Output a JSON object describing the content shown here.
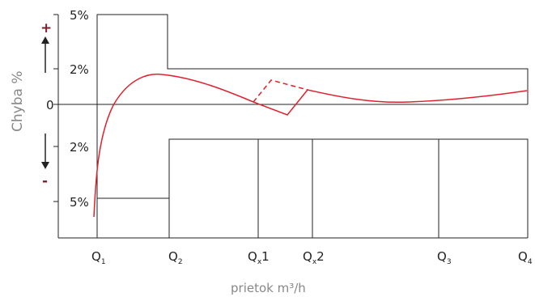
{
  "y_axis": {
    "title": "Chyba %",
    "ticks": [
      "5%",
      "2%",
      "0",
      "2%",
      "5%"
    ],
    "plus_sign": "+",
    "minus_sign": "-"
  },
  "x_axis": {
    "label": "prietok m³/h",
    "points": [
      {
        "main": "Q",
        "sub": "1",
        "suffix": ""
      },
      {
        "main": "Q",
        "sub": "2",
        "suffix": ""
      },
      {
        "main": "Q",
        "sub": "x",
        "suffix": "1"
      },
      {
        "main": "Q",
        "sub": "x",
        "suffix": "2"
      },
      {
        "main": "Q",
        "sub": "3",
        "suffix": ""
      },
      {
        "main": "Q",
        "sub": "4",
        "suffix": ""
      }
    ]
  },
  "colors": {
    "curve": "#e0202c",
    "frame": "#222222",
    "label_gray": "#888888",
    "sign": "#7a1f2b"
  }
}
